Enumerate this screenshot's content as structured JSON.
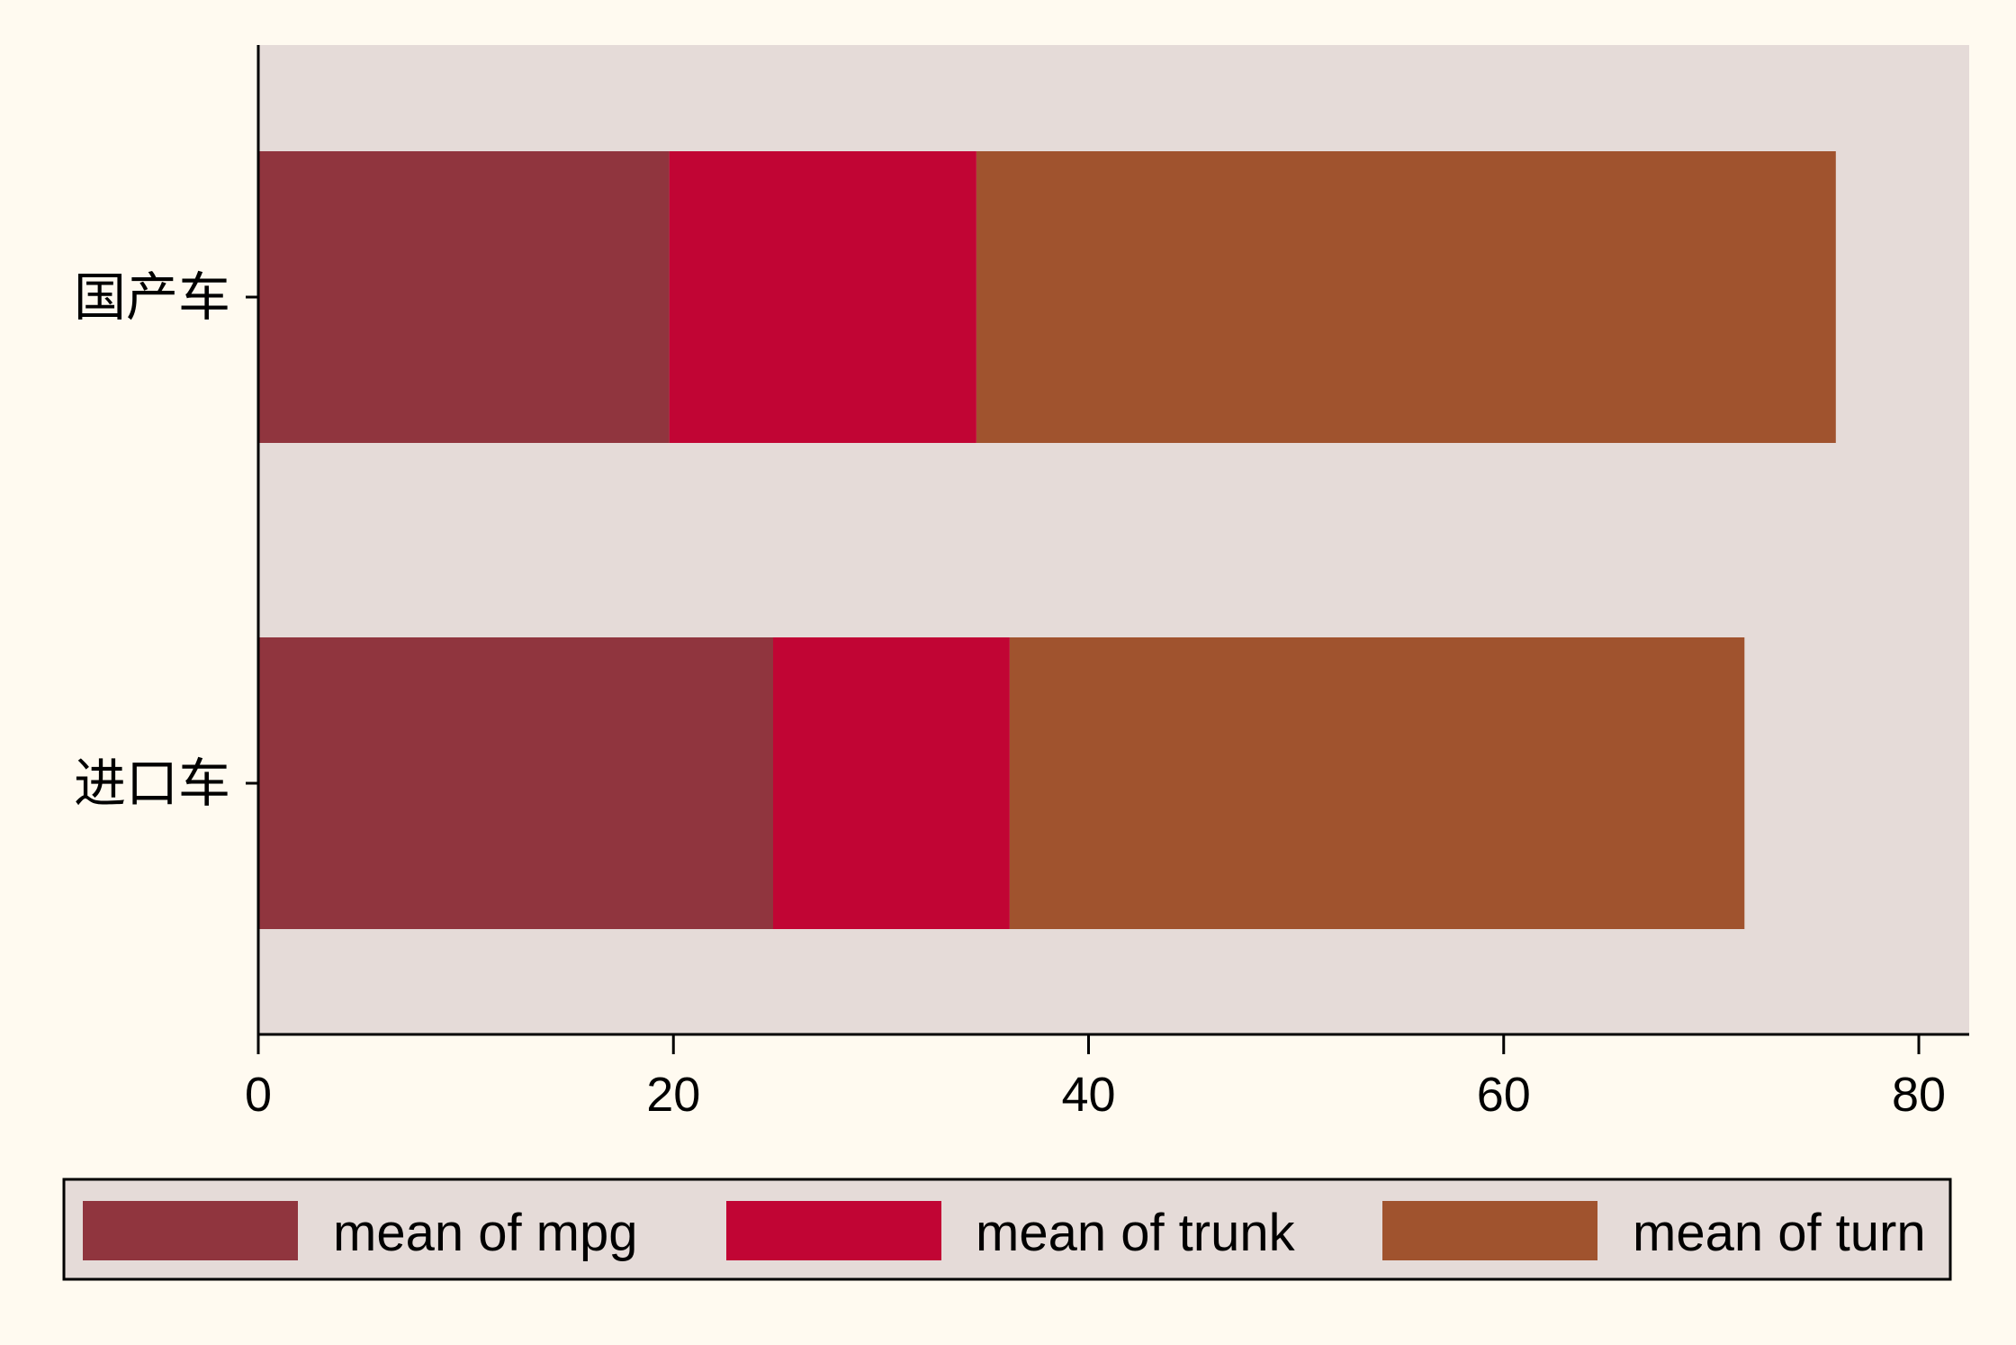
{
  "colors": {
    "page_background": "#fffaf0",
    "plot_background": "#e5dbd8",
    "axis": "#000000"
  },
  "chart_data": {
    "type": "bar",
    "orientation": "horizontal",
    "stacked": true,
    "categories": [
      "国产车",
      "进口车"
    ],
    "series": [
      {
        "name": "mean of mpg",
        "color": "#90353e",
        "values": [
          19.8,
          24.8
        ]
      },
      {
        "name": "mean of trunk",
        "color": "#c10534",
        "values": [
          14.8,
          11.4
        ]
      },
      {
        "name": "mean of turn",
        "color": "#a0532e",
        "values": [
          41.4,
          35.4
        ]
      }
    ],
    "xlim": [
      0,
      82
    ],
    "xticks": [
      0,
      20,
      40,
      60,
      80
    ],
    "xtick_labels": [
      "0",
      "20",
      "40",
      "60",
      "80"
    ],
    "grid": false,
    "legend_position": "bottom"
  }
}
